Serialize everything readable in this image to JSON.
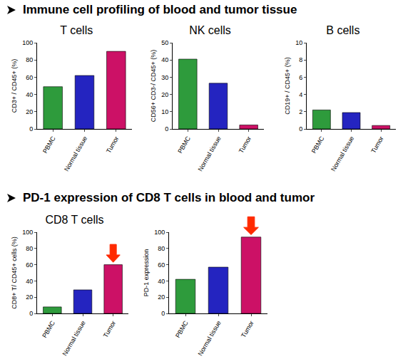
{
  "headings": [
    "Immune cell profiling of blood and tumor tissue",
    "PD-1 expression of CD8 T cells in blood and tumor"
  ],
  "chart_data": [
    {
      "type": "bar",
      "title": "T cells",
      "categories": [
        "PBMC",
        "Normal tissue",
        "Tumor"
      ],
      "values": [
        49,
        62,
        90
      ],
      "colors": [
        "#2e9b3c",
        "#2424c0",
        "#cc1166"
      ],
      "y_label": "CD3+ / CD45+ (%)",
      "ylim": [
        0,
        100
      ],
      "yticks": [
        0,
        20,
        40,
        60,
        80,
        100
      ],
      "grid": false
    },
    {
      "type": "bar",
      "title": "NK cells",
      "categories": [
        "PBMC",
        "Normal tissue",
        "Tumor"
      ],
      "values": [
        40.5,
        26.5,
        2.3
      ],
      "colors": [
        "#2e9b3c",
        "#2424c0",
        "#cc1166"
      ],
      "y_label": "CD56+ CD3-/ CD45+ (%)",
      "ylim": [
        0,
        50
      ],
      "yticks": [
        0,
        10,
        20,
        30,
        40,
        50
      ],
      "grid": false
    },
    {
      "type": "bar",
      "title": "B cells",
      "categories": [
        "PBMC",
        "Normal tissue",
        "Tumor"
      ],
      "values": [
        2.2,
        1.9,
        0.4
      ],
      "colors": [
        "#2e9b3c",
        "#2424c0",
        "#cc1166"
      ],
      "y_label": "CD19+ / CD45+ (%)",
      "ylim": [
        0,
        10
      ],
      "yticks": [
        0,
        2,
        4,
        6,
        8,
        10
      ],
      "grid": false
    },
    {
      "type": "bar",
      "title": "CD8 T cells",
      "categories": [
        "PBMC",
        "Normal tissue",
        "Tumor"
      ],
      "values": [
        8,
        29,
        60
      ],
      "colors": [
        "#2e9b3c",
        "#2424c0",
        "#cc1166"
      ],
      "y_label": "CD8+ T/ CD45+ cells (%)",
      "ylim": [
        0,
        100
      ],
      "yticks": [
        0,
        20,
        40,
        60,
        80,
        100
      ],
      "grid": false
    },
    {
      "type": "bar",
      "categories": [
        "PBMC",
        "Normal tissue",
        "Tumor"
      ],
      "values": [
        42,
        57,
        94
      ],
      "colors": [
        "#2e9b3c",
        "#2424c0",
        "#cc1166"
      ],
      "y_label": "PD-1 expression",
      "ylim": [
        0,
        100
      ],
      "yticks": [
        0,
        20,
        40,
        60,
        80,
        100
      ],
      "grid": false
    }
  ]
}
